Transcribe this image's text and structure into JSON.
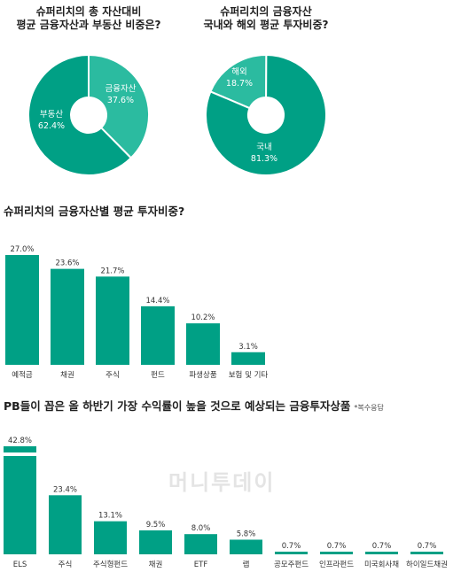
{
  "watermark": "머니투데이",
  "chart_data": [
    {
      "type": "pie",
      "title": "슈퍼리치의 총 자산대비\n평균 금융자산과 부동산 비중은?",
      "slices": [
        {
          "label": "금융자산",
          "value": 37.6,
          "value_label": "37.6%",
          "color": "#2bbba0"
        },
        {
          "label": "부동산",
          "value": 62.4,
          "value_label": "62.4%",
          "color": "#00a085"
        }
      ]
    },
    {
      "type": "pie",
      "title": "슈퍼리치의 금융자산\n국내와 해외 평균 투자비중?",
      "slices": [
        {
          "label": "해외",
          "value": 18.7,
          "value_label": "18.7%",
          "color": "#2bbba0"
        },
        {
          "label": "국내",
          "value": 81.3,
          "value_label": "81.3%",
          "color": "#00a085"
        }
      ]
    },
    {
      "type": "bar",
      "title": "슈퍼리치의 금융자산별 평균 투자비중?",
      "categories": [
        "예적금",
        "채권",
        "주식",
        "펀드",
        "파생상품",
        "보험 및 기타"
      ],
      "values": [
        27.0,
        23.6,
        21.7,
        14.4,
        10.2,
        3.1
      ],
      "value_labels": [
        "27.0%",
        "23.6%",
        "21.7%",
        "14.4%",
        "10.2%",
        "3.1%"
      ],
      "ylim": [
        0,
        27.0
      ],
      "color": "#00a085"
    },
    {
      "type": "bar",
      "title": "PB들이 꼽은 올 하반기 가장 수익률이 높을 것으로 예상되는 금융투자상품",
      "note": "*복수응답",
      "categories": [
        "ELS",
        "주식",
        "주식형펀드",
        "채권",
        "ETF",
        "랩",
        "공모주펀드",
        "인프라펀드",
        "미국회사채",
        "하이일드채권"
      ],
      "values": [
        42.8,
        23.4,
        13.1,
        9.5,
        8.0,
        5.8,
        0.7,
        0.7,
        0.7,
        0.7
      ],
      "value_labels": [
        "42.8%",
        "23.4%",
        "13.1%",
        "9.5%",
        "8.0%",
        "5.8%",
        "0.7%",
        "0.7%",
        "0.7%",
        "0.7%"
      ],
      "axis_break_on_first_bar": true,
      "color": "#00a085"
    }
  ]
}
